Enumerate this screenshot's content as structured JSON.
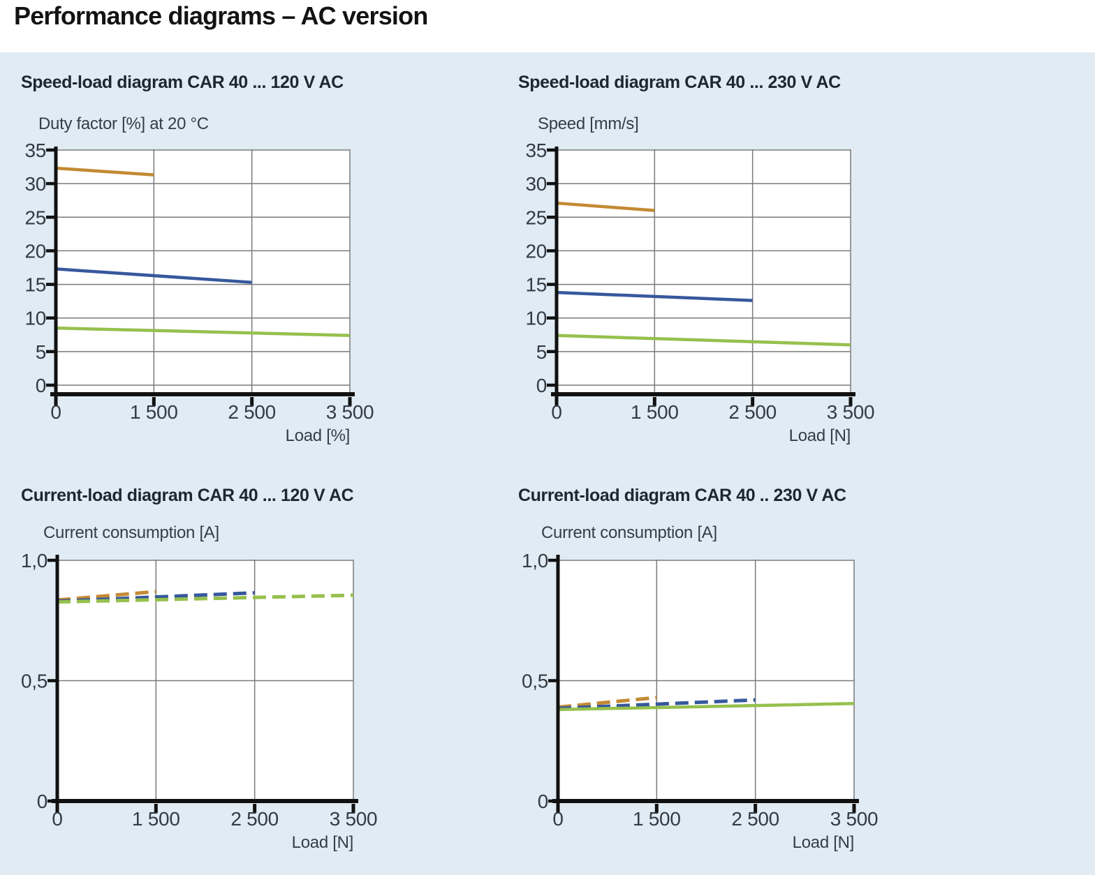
{
  "page": {
    "title": "Performance diagrams – AC version"
  },
  "colors": {
    "orange": "#c38a33",
    "blue": "#36589c",
    "green": "#96c04d",
    "panel_bg": "#e0ebf3",
    "plot_bg": "#ffffff",
    "grid": "#7a7a7a",
    "axis": "#111111",
    "text_dark": "#333b44"
  },
  "chart_data": [
    {
      "type": "line",
      "title": "Speed-load diagram CAR 40 ... 120 V AC",
      "ylabel": "Duty factor [%] at 20 °C",
      "xlabel": "Load [%]",
      "ylim": [
        0,
        35
      ],
      "grid": true,
      "legend": "none",
      "x_scale": "categorical-equal",
      "x_ticks": [
        {
          "v": 0,
          "label": "0"
        },
        {
          "v": 1500,
          "label": "1 500"
        },
        {
          "v": 2500,
          "label": "2 500"
        },
        {
          "v": 3500,
          "label": "3 500"
        }
      ],
      "y_ticks": [
        {
          "v": 0,
          "label": "0"
        },
        {
          "v": 5,
          "label": "5"
        },
        {
          "v": 10,
          "label": "10"
        },
        {
          "v": 15,
          "label": "15"
        },
        {
          "v": 20,
          "label": "20"
        },
        {
          "v": 25,
          "label": "25"
        },
        {
          "v": 30,
          "label": "30"
        },
        {
          "v": 35,
          "label": "35"
        }
      ],
      "series": [
        {
          "color_key": "orange",
          "dashed": false,
          "points": [
            [
              0,
              32.3
            ],
            [
              1500,
              31.3
            ]
          ]
        },
        {
          "color_key": "blue",
          "dashed": false,
          "points": [
            [
              0,
              17.3
            ],
            [
              2500,
              15.3
            ]
          ]
        },
        {
          "color_key": "green",
          "dashed": false,
          "points": [
            [
              0,
              8.5
            ],
            [
              3500,
              7.4
            ]
          ]
        }
      ]
    },
    {
      "type": "line",
      "title": "Speed-load diagram CAR 40 ... 230 V AC",
      "ylabel": "Speed [mm/s]",
      "xlabel": "Load [N]",
      "ylim": [
        0,
        35
      ],
      "grid": true,
      "legend": "none",
      "x_scale": "categorical-equal",
      "x_ticks": [
        {
          "v": 0,
          "label": "0"
        },
        {
          "v": 1500,
          "label": "1 500"
        },
        {
          "v": 2500,
          "label": "2 500"
        },
        {
          "v": 3500,
          "label": "3 500"
        }
      ],
      "y_ticks": [
        {
          "v": 0,
          "label": "0"
        },
        {
          "v": 5,
          "label": "5"
        },
        {
          "v": 10,
          "label": "10"
        },
        {
          "v": 15,
          "label": "15"
        },
        {
          "v": 20,
          "label": "20"
        },
        {
          "v": 25,
          "label": "25"
        },
        {
          "v": 30,
          "label": "30"
        },
        {
          "v": 35,
          "label": "35"
        }
      ],
      "series": [
        {
          "color_key": "orange",
          "dashed": false,
          "points": [
            [
              0,
              27.1
            ],
            [
              1500,
              26.0
            ]
          ]
        },
        {
          "color_key": "blue",
          "dashed": false,
          "points": [
            [
              0,
              13.8
            ],
            [
              2500,
              12.6
            ]
          ]
        },
        {
          "color_key": "green",
          "dashed": false,
          "points": [
            [
              0,
              7.4
            ],
            [
              3500,
              6.0
            ]
          ]
        }
      ]
    },
    {
      "type": "line",
      "title": "Current-load diagram CAR 40 ... 120 V AC",
      "ylabel": "Current consumption [A]",
      "xlabel": "Load [N]",
      "ylim": [
        0,
        1.0
      ],
      "grid": true,
      "legend": "none",
      "x_scale": "categorical-equal",
      "x_ticks": [
        {
          "v": 0,
          "label": "0"
        },
        {
          "v": 1500,
          "label": "1 500"
        },
        {
          "v": 2500,
          "label": "2 500"
        },
        {
          "v": 3500,
          "label": "3 500"
        }
      ],
      "y_ticks": [
        {
          "v": 0,
          "label": "0"
        },
        {
          "v": 0.5,
          "label": "0,5"
        },
        {
          "v": 1.0,
          "label": "1,0"
        }
      ],
      "series": [
        {
          "color_key": "orange",
          "dashed": true,
          "points": [
            [
              0,
              0.835
            ],
            [
              1500,
              0.87
            ]
          ]
        },
        {
          "color_key": "blue",
          "dashed": true,
          "points": [
            [
              0,
              0.83
            ],
            [
              2500,
              0.865
            ]
          ]
        },
        {
          "color_key": "green",
          "dashed": true,
          "points": [
            [
              0,
              0.827
            ],
            [
              3500,
              0.855
            ]
          ]
        }
      ]
    },
    {
      "type": "line",
      "title": "Current-load diagram CAR 40 .. 230 V AC",
      "ylabel": "Current consumption [A]",
      "xlabel": "Load [N]",
      "ylim": [
        0,
        1.0
      ],
      "grid": true,
      "legend": "none",
      "x_scale": "categorical-equal",
      "x_ticks": [
        {
          "v": 0,
          "label": "0"
        },
        {
          "v": 1500,
          "label": "1 500"
        },
        {
          "v": 2500,
          "label": "2 500"
        },
        {
          "v": 3500,
          "label": "3 500"
        }
      ],
      "y_ticks": [
        {
          "v": 0,
          "label": "0"
        },
        {
          "v": 0.5,
          "label": "0,5"
        },
        {
          "v": 1.0,
          "label": "1,0"
        }
      ],
      "series": [
        {
          "color_key": "orange",
          "dashed": true,
          "points": [
            [
              0,
              0.39
            ],
            [
              1500,
              0.43
            ]
          ]
        },
        {
          "color_key": "blue",
          "dashed": true,
          "points": [
            [
              0,
              0.385
            ],
            [
              2500,
              0.42
            ]
          ]
        },
        {
          "color_key": "green",
          "dashed": false,
          "points": [
            [
              0,
              0.38
            ],
            [
              3500,
              0.405
            ]
          ]
        }
      ]
    }
  ]
}
